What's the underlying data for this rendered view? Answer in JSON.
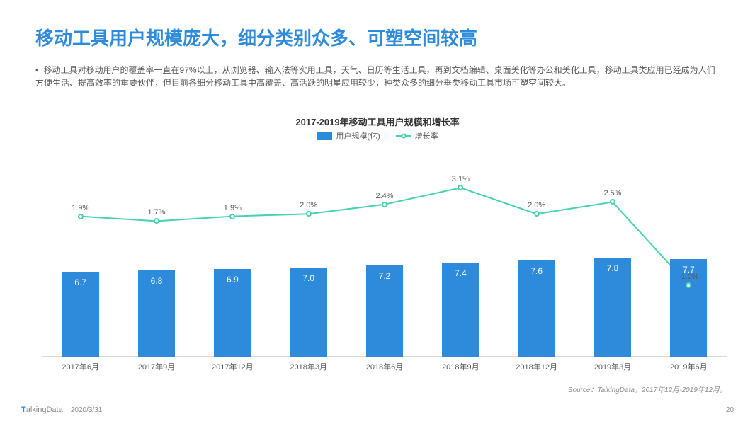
{
  "title": "移动工具用户规模庞大，细分类别众多、可塑空间较高",
  "title_color": "#2e8bdb",
  "title_fontsize": 26,
  "description": "移动工具对移动用户的覆盖率一直在97%以上，从浏览器、输入法等实用工具，天气、日历等生活工具，再到文档编辑、桌面美化等办公和美化工具，移动工具类应用已经成为人们方便生活、提高效率的重要伙伴，但目前各细分移动工具中高覆盖、高活跃的明星应用较少，种类众多的细分垂类移动工具市场可塑空间较大。",
  "description_color": "#595959",
  "chart": {
    "title": "2017-2019年移动工具用户规模和增长率",
    "type": "bar+line",
    "legend": {
      "bar_label": "用户规模(亿)",
      "line_label": "增长率"
    },
    "categories": [
      "2017年6月",
      "2017年9月",
      "2017年12月",
      "2018年3月",
      "2018年6月",
      "2018年9月",
      "2018年12月",
      "2019年3月",
      "2019年6月"
    ],
    "bar_values": [
      6.7,
      6.8,
      6.9,
      7.0,
      7.2,
      7.4,
      7.6,
      7.8,
      7.7
    ],
    "bar_color": "#2e8bdb",
    "bar_label_color": "#ffffff",
    "bar_y_max": 15,
    "growth_values_pct": [
      1.9,
      1.7,
      1.9,
      2.0,
      2.4,
      3.1,
      2.0,
      2.5,
      -1.0
    ],
    "line_color": "#45d2b0",
    "line_y_min_pct": -4,
    "line_y_max_pct": 4,
    "marker_border_color": "#45d2b0",
    "marker_fill": "#ffffff",
    "axis_color": "#d9d9d9",
    "text_color": "#595959",
    "background_color": "#ffffff"
  },
  "source": "Source：TalkingData，2017年12月-2019年12月。",
  "footer": {
    "logo_prefix": "T",
    "logo_rest": "alkingData",
    "date": "2020/3/31",
    "page": "20"
  }
}
